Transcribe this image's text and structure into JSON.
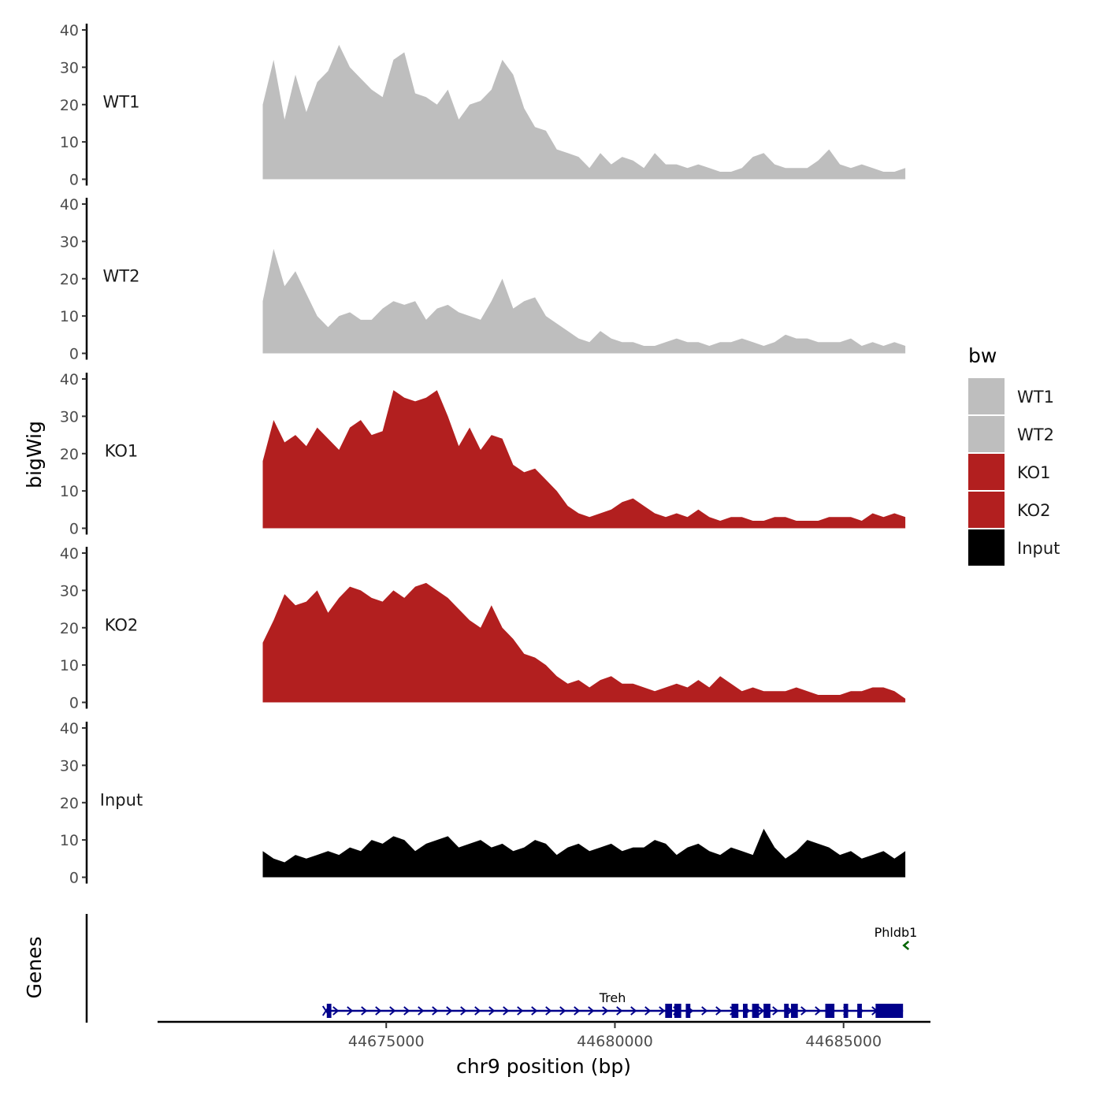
{
  "chart_data": {
    "type": "area",
    "chromosome": "chr9",
    "xlabel": "chr9 position (bp)",
    "ylabel": "bigWig",
    "xlim": [
      44670000,
      44686900
    ],
    "x_ticks": [
      44675000,
      44680000,
      44685000
    ],
    "x_tick_labels": [
      "44675000",
      "44680000",
      "44685000"
    ],
    "ylim": [
      0,
      40
    ],
    "y_ticks": [
      0,
      10,
      20,
      30,
      40
    ],
    "y_tick_labels": [
      "0",
      "10",
      "20",
      "30",
      "40"
    ],
    "track_start": 44672300,
    "track_end": 44686350,
    "legend": {
      "title": "bw",
      "entries": [
        {
          "name": "WT1",
          "color": "#bebebe"
        },
        {
          "name": "WT2",
          "color": "#bebebe"
        },
        {
          "name": "KO1",
          "color": "#b21f1f"
        },
        {
          "name": "KO2",
          "color": "#b21f1f"
        },
        {
          "name": "Input",
          "color": "#000000"
        }
      ]
    },
    "series": [
      {
        "name": "WT1",
        "color": "#bebebe",
        "values": [
          20,
          32,
          16,
          28,
          18,
          26,
          29,
          36,
          30,
          27,
          24,
          22,
          32,
          34,
          23,
          22,
          20,
          24,
          16,
          20,
          21,
          24,
          32,
          28,
          19,
          14,
          13,
          8,
          7,
          6,
          3,
          7,
          4,
          6,
          5,
          3,
          7,
          4,
          4,
          3,
          4,
          3,
          2,
          2,
          3,
          6,
          7,
          4,
          3,
          3,
          3,
          5,
          8,
          4,
          3,
          4,
          3,
          2,
          2,
          3
        ]
      },
      {
        "name": "WT2",
        "color": "#bebebe",
        "values": [
          14,
          28,
          18,
          22,
          16,
          10,
          7,
          10,
          11,
          9,
          9,
          12,
          14,
          13,
          14,
          9,
          12,
          13,
          11,
          10,
          9,
          14,
          20,
          12,
          14,
          15,
          10,
          8,
          6,
          4,
          3,
          6,
          4,
          3,
          3,
          2,
          2,
          3,
          4,
          3,
          3,
          2,
          3,
          3,
          4,
          3,
          2,
          3,
          5,
          4,
          4,
          3,
          3,
          3,
          4,
          2,
          3,
          2,
          3,
          2
        ]
      },
      {
        "name": "KO1",
        "color": "#b21f1f",
        "values": [
          18,
          29,
          23,
          25,
          22,
          27,
          24,
          21,
          27,
          29,
          25,
          26,
          37,
          35,
          34,
          35,
          37,
          30,
          22,
          27,
          21,
          25,
          24,
          17,
          15,
          16,
          13,
          10,
          6,
          4,
          3,
          4,
          5,
          7,
          8,
          6,
          4,
          3,
          4,
          3,
          5,
          3,
          2,
          3,
          3,
          2,
          2,
          3,
          3,
          2,
          2,
          2,
          3,
          3,
          3,
          2,
          4,
          3,
          4,
          3
        ]
      },
      {
        "name": "KO2",
        "color": "#b21f1f",
        "values": [
          16,
          22,
          29,
          26,
          27,
          30,
          24,
          28,
          31,
          30,
          28,
          27,
          30,
          28,
          31,
          32,
          30,
          28,
          25,
          22,
          20,
          26,
          20,
          17,
          13,
          12,
          10,
          7,
          5,
          6,
          4,
          6,
          7,
          5,
          5,
          4,
          3,
          4,
          5,
          4,
          6,
          4,
          7,
          5,
          3,
          4,
          3,
          3,
          3,
          4,
          3,
          2,
          2,
          2,
          3,
          3,
          4,
          4,
          3,
          1
        ]
      },
      {
        "name": "Input",
        "color": "#000000",
        "values": [
          7,
          5,
          4,
          6,
          5,
          6,
          7,
          6,
          8,
          7,
          10,
          9,
          11,
          10,
          7,
          9,
          10,
          11,
          8,
          9,
          10,
          8,
          9,
          7,
          8,
          10,
          9,
          6,
          8,
          9,
          7,
          8,
          9,
          7,
          8,
          8,
          10,
          9,
          6,
          8,
          9,
          7,
          6,
          8,
          7,
          6,
          13,
          8,
          5,
          7,
          10,
          9,
          8,
          6,
          7,
          5,
          6,
          7,
          5,
          7
        ]
      }
    ],
    "genes": {
      "panel_label": "Genes",
      "items": [
        {
          "name": "Treh",
          "strand": "+",
          "start": 44673700,
          "end": 44686300,
          "color": "#00008b",
          "exons": [
            [
              44673700,
              44673800
            ],
            [
              44681100,
              44681250
            ],
            [
              44681300,
              44681450
            ],
            [
              44681550,
              44681650
            ],
            [
              44682550,
              44682700
            ],
            [
              44682800,
              44682900
            ],
            [
              44683000,
              44683150
            ],
            [
              44683250,
              44683400
            ],
            [
              44683700,
              44683800
            ],
            [
              44683850,
              44684000
            ],
            [
              44684600,
              44684800
            ],
            [
              44685000,
              44685100
            ],
            [
              44685300,
              44685400
            ],
            [
              44685700,
              44686300
            ]
          ]
        },
        {
          "name": "Phldb1",
          "strand": "-",
          "start": 44686250,
          "end": 44686400,
          "color": "#006400",
          "exons": []
        }
      ]
    }
  }
}
